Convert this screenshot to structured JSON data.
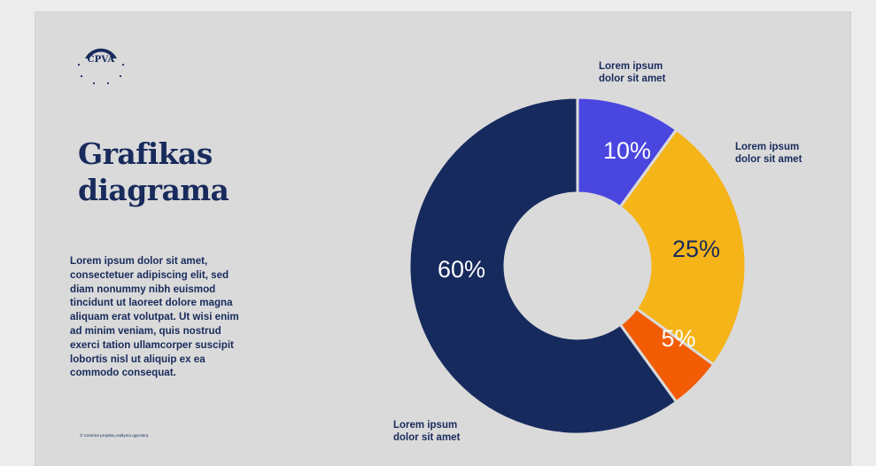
{
  "logo": {
    "text": "CPVA",
    "colors": {
      "primary": "#182b5c"
    }
  },
  "slide": {
    "title_line1": "Grafikas",
    "title_line2": "diagrama",
    "body": "Lorem ipsum dolor sit amet,\nconsectetuer adipiscing elit, sed\ndiam nonummy nibh euismod\ntincidunt ut laoreet dolore magna\naliquam erat volutpat. Ut wisi enim\nad minim veniam, quis nostrud\nexerci tation ullamcorper suscipit\nlobortis nisl ut aliquip ex ea\ncommodo consequat.",
    "footer": "© Centrinė projektų valdymo agentūra"
  },
  "chart_data": {
    "type": "pie",
    "style": "donut",
    "title": "",
    "slices": [
      {
        "label": "10%",
        "value": 10,
        "color": "#4a46e0",
        "label_color": "#ffffff",
        "annotation": [
          "Lorem ipsum",
          "dolor sit amet"
        ]
      },
      {
        "label": "25%",
        "value": 25,
        "color": "#f5b418",
        "label_color": "#182b5c",
        "annotation": [
          "Lorem ipsum",
          "dolor sit amet"
        ]
      },
      {
        "label": "5%",
        "value": 5,
        "color": "#f25c05",
        "label_color": "#ffffff",
        "annotation": []
      },
      {
        "label": "60%",
        "value": 60,
        "color": "#162a5e",
        "label_color": "#ffffff",
        "annotation": [
          "Lorem ipsum",
          "dolor sit amet"
        ]
      }
    ],
    "start_angle": "top",
    "direction": "clockwise",
    "legend": "none"
  }
}
